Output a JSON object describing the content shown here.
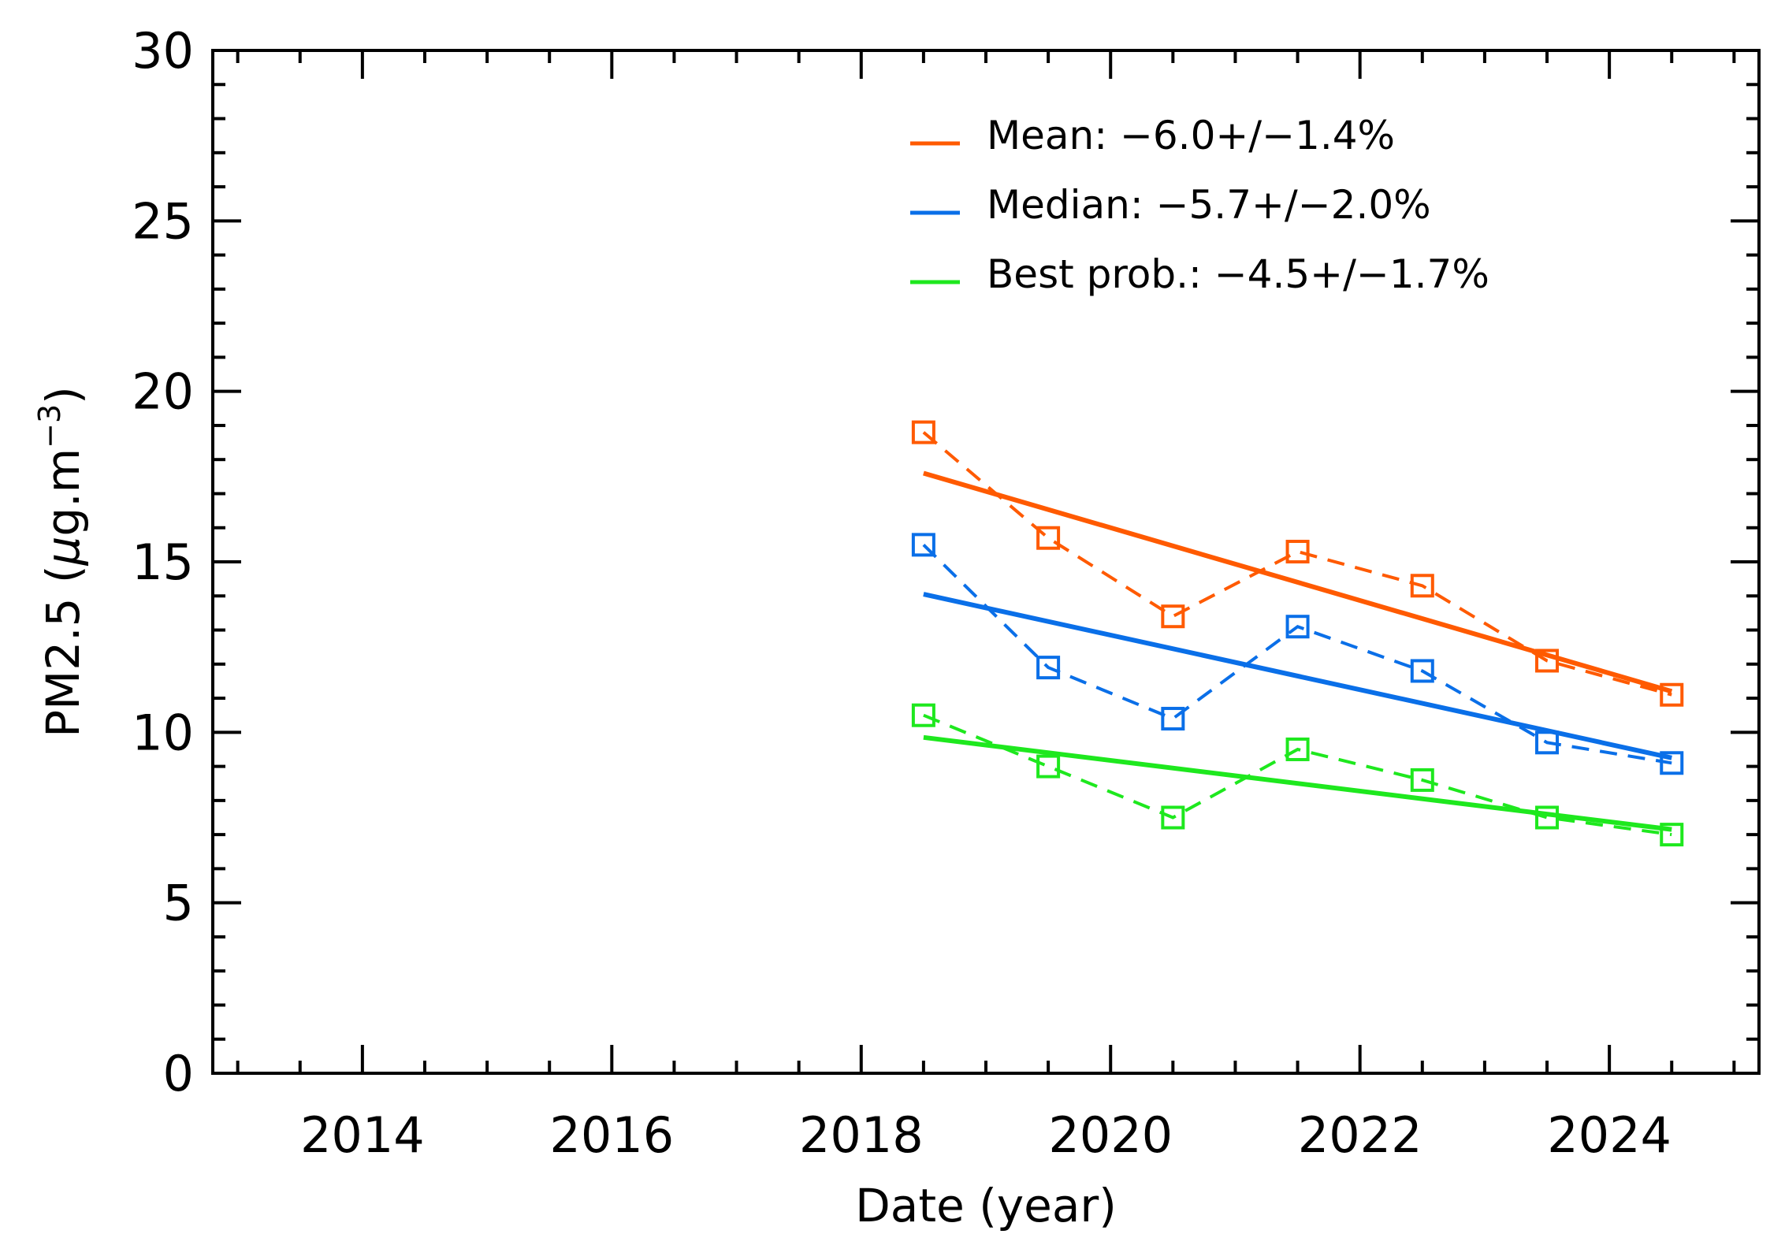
{
  "chart_data": {
    "type": "line",
    "title": "",
    "xlabel": "Date (year)",
    "ylabel": "PM2.5 (μg.m⁻³)",
    "ylabel_parts": {
      "main": "PM2.5 (",
      "mu": "μ",
      "unit": "g.m",
      "exp": "−3",
      "close": ")"
    },
    "xlim": [
      2012.8,
      2025.2
    ],
    "ylim": [
      0,
      30
    ],
    "xticks": [
      2014,
      2016,
      2018,
      2020,
      2022,
      2024
    ],
    "xtick_labels": [
      "2014",
      "2016",
      "2018",
      "2020",
      "2022",
      "2024"
    ],
    "yticks": [
      0,
      5,
      10,
      15,
      20,
      25,
      30
    ],
    "ytick_labels": [
      "0",
      "5",
      "10",
      "15",
      "20",
      "25",
      "30"
    ],
    "legend_position": "top-right",
    "grid": false,
    "series": [
      {
        "name": "Mean: −6.0+/−1.4%",
        "color": "#ff5a00",
        "x": [
          2018.5,
          2019.5,
          2020.5,
          2021.5,
          2022.5,
          2023.5,
          2024.5
        ],
        "values": [
          18.8,
          15.7,
          13.4,
          15.3,
          14.3,
          12.1,
          11.1
        ],
        "trend": {
          "x": [
            2018.5,
            2024.5
          ],
          "y": [
            17.6,
            11.2
          ]
        }
      },
      {
        "name": "Median: −5.7+/−2.0%",
        "color": "#0a6fe8",
        "x": [
          2018.5,
          2019.5,
          2020.5,
          2021.5,
          2022.5,
          2023.5,
          2024.5
        ],
        "values": [
          15.5,
          11.9,
          10.4,
          13.1,
          11.8,
          9.7,
          9.1
        ],
        "trend": {
          "x": [
            2018.5,
            2024.5
          ],
          "y": [
            14.05,
            9.25
          ]
        }
      },
      {
        "name": "Best prob.: −4.5+/−1.7%",
        "color": "#1ee81e",
        "x": [
          2018.5,
          2019.5,
          2020.5,
          2021.5,
          2022.5,
          2023.5,
          2024.5
        ],
        "values": [
          10.5,
          9.0,
          7.5,
          9.5,
          8.6,
          7.5,
          7.0
        ],
        "trend": {
          "x": [
            2018.5,
            2024.5
          ],
          "y": [
            9.85,
            7.15
          ]
        }
      }
    ]
  }
}
